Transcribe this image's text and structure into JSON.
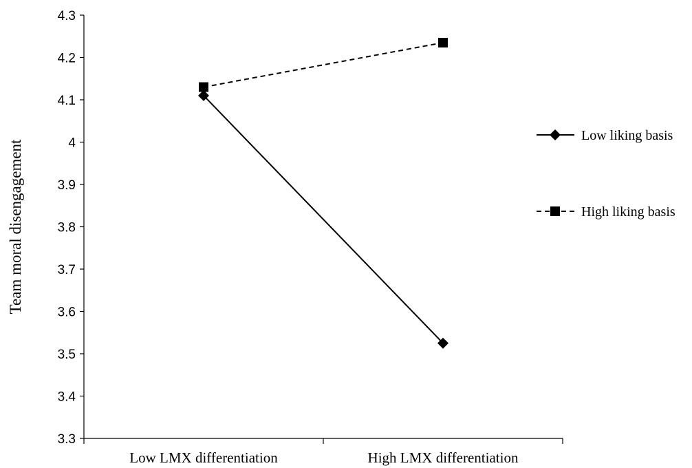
{
  "chart_data": {
    "type": "line",
    "title": "",
    "ylabel": "Team moral disengagement",
    "xlabel": "",
    "categories": [
      "Low LMX differentiation",
      "High LMX differentiation"
    ],
    "ylim": [
      3.3,
      4.3
    ],
    "yticks": [
      3.3,
      3.4,
      3.5,
      3.6,
      3.7,
      3.8,
      3.9,
      4.0,
      4.1,
      4.2,
      4.3
    ],
    "ytick_labels": [
      "3.3",
      "3.4",
      "3.5",
      "3.6",
      "3.7",
      "3.8",
      "3.9",
      "4",
      "4.1",
      "4.2",
      "4.3"
    ],
    "grid": false,
    "legend_position": "right",
    "series": [
      {
        "name": "Low liking basis",
        "values": [
          4.11,
          3.525
        ],
        "line_style": "solid",
        "marker": "diamond",
        "color": "#000000"
      },
      {
        "name": "High liking basis",
        "values": [
          4.13,
          4.235
        ],
        "line_style": "dashed",
        "marker": "square",
        "color": "#000000"
      }
    ]
  }
}
